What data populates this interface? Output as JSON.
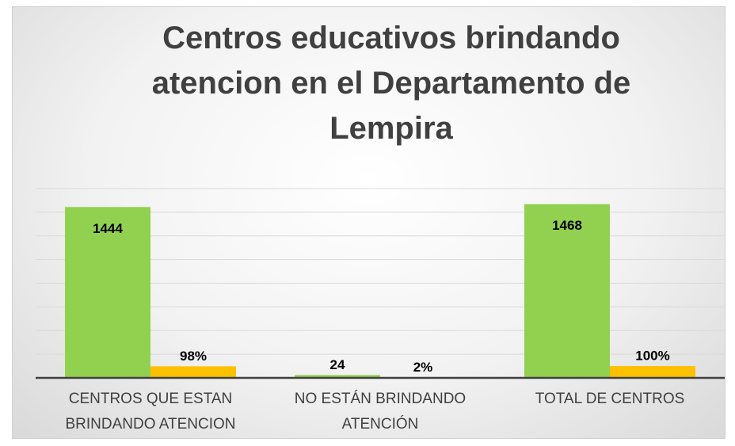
{
  "chart_data": {
    "type": "bar",
    "title": "Centros educativos brindando atencion en el Departamento de Lempira",
    "categories": [
      "CENTROS QUE ESTAN BRINDANDO ATENCION",
      "NO ESTÁN BRINDANDO ATENCIÓN",
      "TOTAL DE CENTROS"
    ],
    "series": [
      {
        "color": "#92d050",
        "values": [
          1444,
          24,
          1468
        ]
      },
      {
        "color": "#ffc000",
        "values": [
          98,
          2,
          100
        ],
        "value_labels": [
          "98%",
          "2%",
          "100%"
        ]
      }
    ],
    "ylim": [
      0,
      1600
    ],
    "yticks": [
      0,
      200,
      400,
      600,
      800,
      1000,
      1200,
      1400,
      1600
    ],
    "grid": true
  }
}
